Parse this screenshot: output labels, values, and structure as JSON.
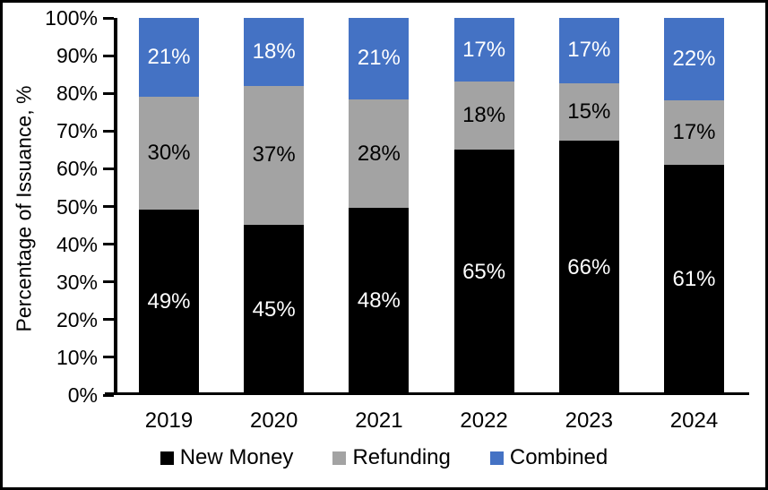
{
  "chart_data": {
    "type": "bar",
    "stacked": true,
    "title": "",
    "xlabel": "",
    "ylabel": "Percentage of Issuance, %",
    "categories": [
      "2019",
      "2020",
      "2021",
      "2022",
      "2023",
      "2024"
    ],
    "series": [
      {
        "name": "New Money",
        "color": "#000000",
        "label_color": "#ffffff",
        "values": [
          49,
          45,
          48,
          65,
          66,
          61
        ]
      },
      {
        "name": "Refunding",
        "color": "#a3a3a3",
        "label_color": "#000000",
        "values": [
          30,
          37,
          28,
          18,
          15,
          17
        ]
      },
      {
        "name": "Combined",
        "color": "#4472c4",
        "label_color": "#ffffff",
        "values": [
          21,
          18,
          21,
          17,
          17,
          22
        ]
      }
    ],
    "y_ticks": [
      "100%",
      "90%",
      "80%",
      "70%",
      "60%",
      "50%",
      "40%",
      "30%",
      "20%",
      "10%",
      "0%"
    ],
    "ylim": [
      0,
      100
    ],
    "unit": "%",
    "grid": false,
    "legend_position": "bottom"
  }
}
